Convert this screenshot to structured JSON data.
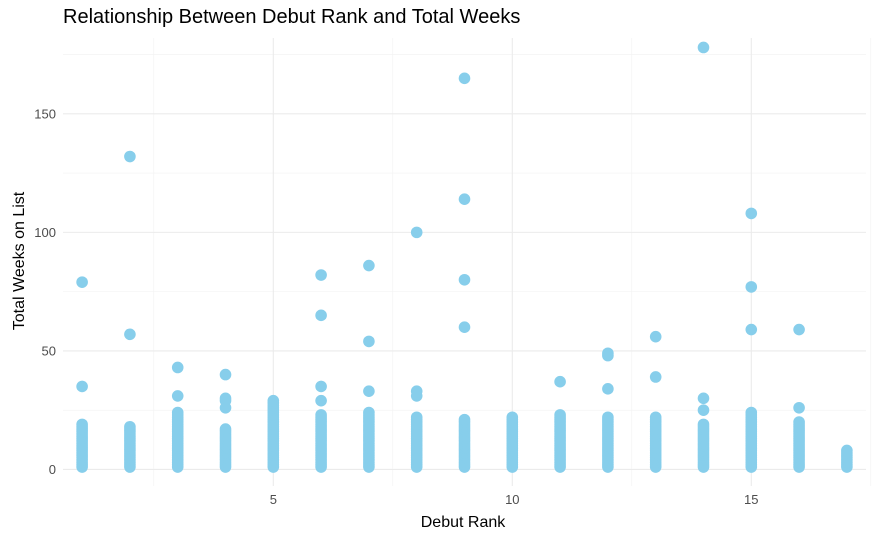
{
  "chart_data": {
    "type": "scatter",
    "title": "Relationship Between Debut Rank and Total Weeks",
    "xlabel": "Debut Rank",
    "ylabel": "Total Weeks on List",
    "xlim": [
      0.6,
      17.4
    ],
    "ylim": [
      -7,
      182
    ],
    "x_ticks": [
      5,
      10,
      15
    ],
    "x_minor_ticks": [
      2.5,
      7.5,
      12.5,
      17.5
    ],
    "y_ticks": [
      0,
      50,
      100,
      150
    ],
    "y_minor_ticks": [
      25,
      75,
      125,
      175
    ],
    "grid": true,
    "marker_color": "#87CEEB",
    "point_groups": [
      {
        "x": 1,
        "max": 19,
        "outliers": [
          35,
          79
        ]
      },
      {
        "x": 2,
        "max": 18,
        "outliers": [
          57,
          132
        ]
      },
      {
        "x": 3,
        "max": 24,
        "outliers": [
          31,
          43
        ]
      },
      {
        "x": 4,
        "max": 17,
        "outliers": [
          26,
          29,
          30,
          40
        ]
      },
      {
        "x": 5,
        "max": 29,
        "outliers": []
      },
      {
        "x": 6,
        "max": 23,
        "outliers": [
          29,
          35,
          65,
          82
        ]
      },
      {
        "x": 7,
        "max": 24,
        "outliers": [
          33,
          54,
          86
        ]
      },
      {
        "x": 8,
        "max": 22,
        "outliers": [
          31,
          33,
          100
        ]
      },
      {
        "x": 9,
        "max": 21,
        "outliers": [
          60,
          80,
          114,
          165
        ]
      },
      {
        "x": 10,
        "max": 22,
        "outliers": []
      },
      {
        "x": 11,
        "max": 23,
        "outliers": [
          37
        ]
      },
      {
        "x": 12,
        "max": 22,
        "outliers": [
          34,
          48,
          49
        ]
      },
      {
        "x": 13,
        "max": 22,
        "outliers": [
          39,
          56
        ]
      },
      {
        "x": 14,
        "max": 19,
        "outliers": [
          25,
          30,
          178
        ]
      },
      {
        "x": 15,
        "max": 24,
        "outliers": [
          59,
          77,
          108
        ]
      },
      {
        "x": 16,
        "max": 20,
        "outliers": [
          26,
          59
        ]
      },
      {
        "x": 17,
        "max": 8,
        "outliers": []
      }
    ]
  }
}
